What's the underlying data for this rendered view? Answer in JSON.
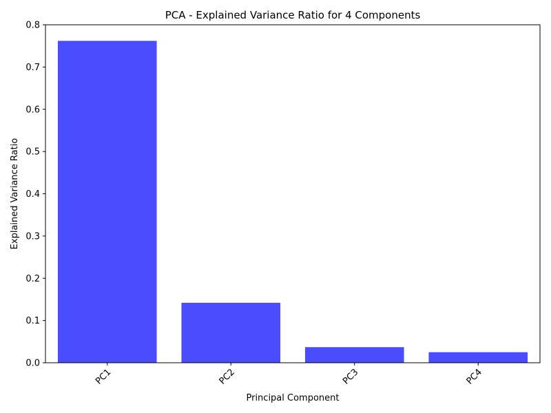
{
  "chart_data": {
    "type": "bar",
    "title": "PCA - Explained Variance Ratio for 4 Components",
    "xlabel": "Principal Component",
    "ylabel": "Explained Variance Ratio",
    "categories": [
      "PC1",
      "PC2",
      "PC3",
      "PC4"
    ],
    "values": [
      0.762,
      0.142,
      0.037,
      0.025
    ],
    "ylim": [
      0,
      0.8
    ],
    "yticks": [
      0.0,
      0.1,
      0.2,
      0.3,
      0.4,
      0.5,
      0.6,
      0.7,
      0.8
    ],
    "ytick_labels": [
      "0.0",
      "0.1",
      "0.2",
      "0.3",
      "0.4",
      "0.5",
      "0.6",
      "0.7",
      "0.8"
    ],
    "bar_color": "#4c4cff",
    "grid": false,
    "legend": "none"
  }
}
